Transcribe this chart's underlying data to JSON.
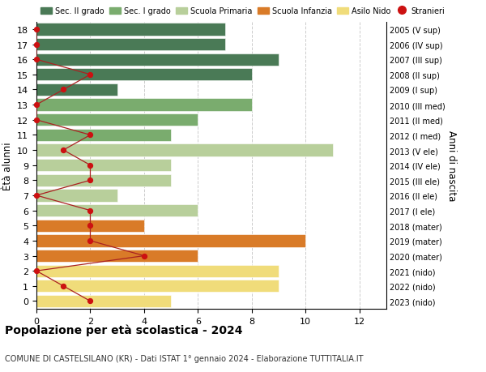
{
  "ages": [
    18,
    17,
    16,
    15,
    14,
    13,
    12,
    11,
    10,
    9,
    8,
    7,
    6,
    5,
    4,
    3,
    2,
    1,
    0
  ],
  "year_labels": [
    "2005 (V sup)",
    "2006 (IV sup)",
    "2007 (III sup)",
    "2008 (II sup)",
    "2009 (I sup)",
    "2010 (III med)",
    "2011 (II med)",
    "2012 (I med)",
    "2013 (V ele)",
    "2014 (IV ele)",
    "2015 (III ele)",
    "2016 (II ele)",
    "2017 (I ele)",
    "2018 (mater)",
    "2019 (mater)",
    "2020 (mater)",
    "2021 (nido)",
    "2022 (nido)",
    "2023 (nido)"
  ],
  "bar_values": [
    7,
    7,
    9,
    8,
    3,
    8,
    6,
    5,
    11,
    5,
    5,
    3,
    6,
    4,
    10,
    6,
    9,
    9,
    5
  ],
  "bar_colors": [
    "#4a7a56",
    "#4a7a56",
    "#4a7a56",
    "#4a7a56",
    "#4a7a56",
    "#7aac6e",
    "#7aac6e",
    "#7aac6e",
    "#b8cf9b",
    "#b8cf9b",
    "#b8cf9b",
    "#b8cf9b",
    "#b8cf9b",
    "#d97b28",
    "#d97b28",
    "#d97b28",
    "#f0dc7a",
    "#f0dc7a",
    "#f0dc7a"
  ],
  "stranieri_values": [
    0,
    0,
    0,
    2,
    1,
    0,
    0,
    2,
    1,
    2,
    2,
    0,
    2,
    2,
    2,
    4,
    0,
    1,
    2
  ],
  "legend_labels": [
    "Sec. II grado",
    "Sec. I grado",
    "Scuola Primaria",
    "Scuola Infanzia",
    "Asilo Nido",
    "Stranieri"
  ],
  "legend_colors": [
    "#4a7a56",
    "#7aac6e",
    "#b8cf9b",
    "#d97b28",
    "#f0dc7a",
    "#cc1111"
  ],
  "title": "Popolazione per età scolastica - 2024",
  "subtitle": "COMUNE DI CASTELSILANO (KR) - Dati ISTAT 1° gennaio 2024 - Elaborazione TUTTITALIA.IT",
  "ylabel_left": "Ètà alunni",
  "ylabel_right": "Anni di nascita",
  "xlim": [
    0,
    13
  ],
  "xticks": [
    0,
    2,
    4,
    6,
    8,
    10,
    12
  ],
  "stranieri_color": "#cc1111",
  "line_color": "#aa2222",
  "grid_color": "#cccccc",
  "bg_color": "#ffffff"
}
